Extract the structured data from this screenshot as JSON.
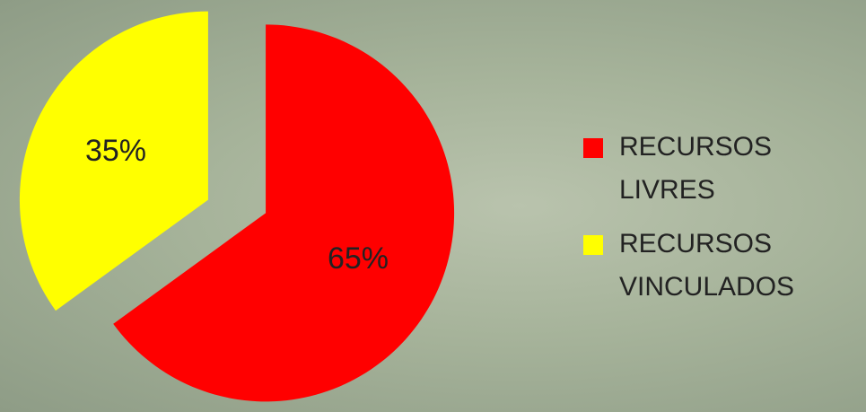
{
  "chart_data": {
    "type": "pie",
    "categories": [
      "RECURSOS LIVRES",
      "RECURSOS VINCULADOS"
    ],
    "values": [
      65,
      35
    ],
    "value_labels": [
      "65%",
      "35%"
    ],
    "colors": [
      "#ff0000",
      "#ffff00"
    ],
    "legend": "right"
  }
}
